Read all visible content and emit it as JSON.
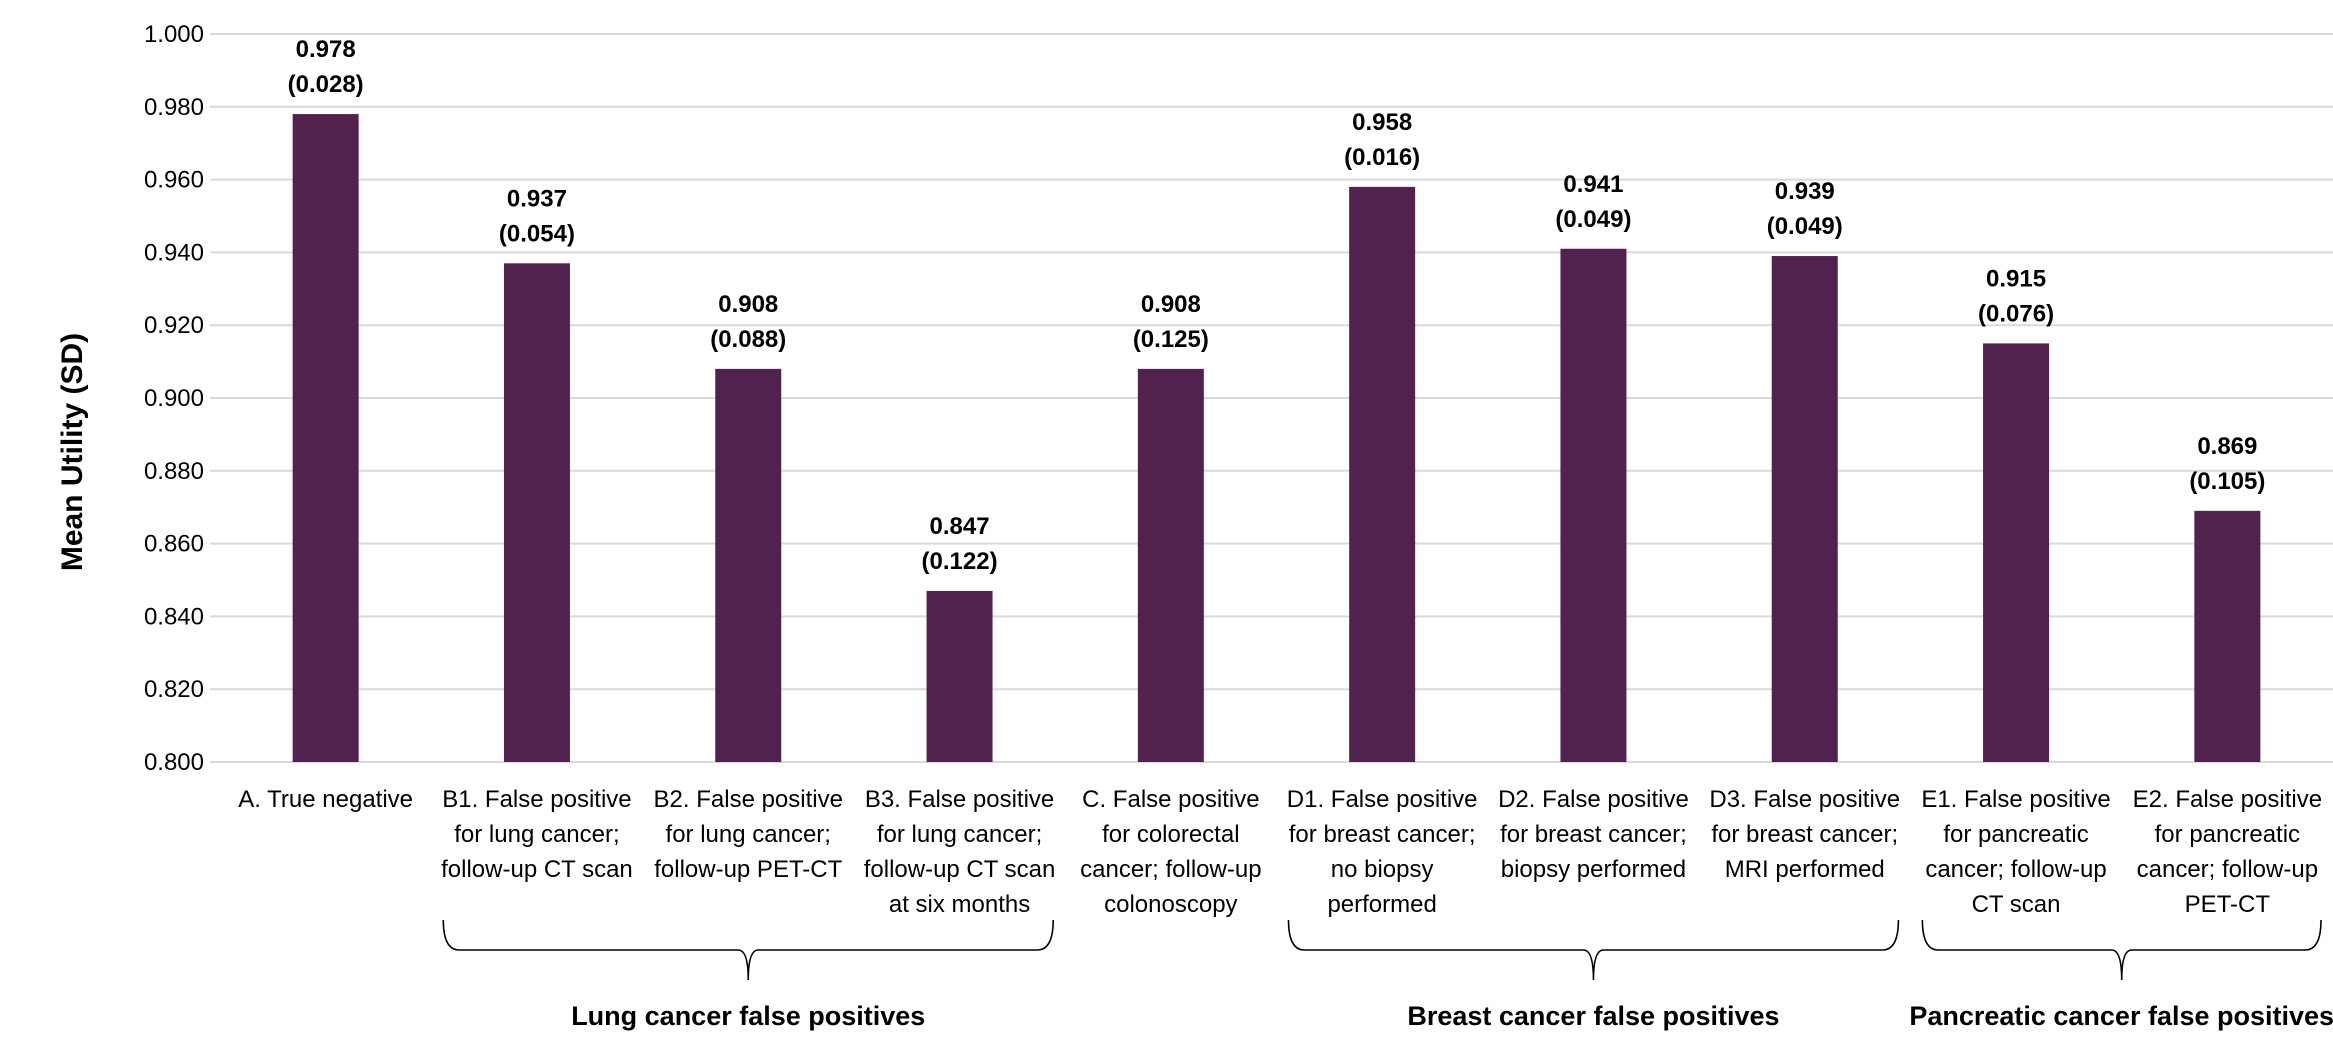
{
  "chart_data": {
    "type": "bar",
    "title": "",
    "xlabel": "",
    "ylabel": "Mean Utility (SD)",
    "ylim": [
      0.8,
      1.0
    ],
    "y_ticks": [
      "0.800",
      "0.820",
      "0.840",
      "0.860",
      "0.880",
      "0.900",
      "0.920",
      "0.940",
      "0.960",
      "0.980",
      "1.000"
    ],
    "grid": true,
    "legend": "none",
    "bar_color": "#52224f",
    "categories": [
      [
        "A. True negative"
      ],
      [
        "B1. False positive",
        "for lung cancer;",
        "follow-up CT scan"
      ],
      [
        "B2. False positive",
        "for lung cancer;",
        "follow-up PET-CT"
      ],
      [
        "B3. False positive",
        "for lung cancer;",
        "follow-up CT scan",
        "at six months"
      ],
      [
        "C. False positive",
        "for colorectal",
        "cancer; follow-up",
        "colonoscopy"
      ],
      [
        "D1. False positive",
        "for breast cancer;",
        "no biopsy",
        "performed"
      ],
      [
        "D2. False positive",
        "for breast cancer;",
        "biopsy performed"
      ],
      [
        "D3. False positive",
        "for breast cancer;",
        "MRI performed"
      ],
      [
        "E1. False positive",
        "for pancreatic",
        "cancer; follow-up",
        "CT scan"
      ],
      [
        "E2. False positive",
        "for pancreatic",
        "cancer; follow-up",
        "PET-CT"
      ]
    ],
    "values": [
      0.978,
      0.937,
      0.908,
      0.847,
      0.908,
      0.958,
      0.941,
      0.939,
      0.915,
      0.869
    ],
    "sd": [
      0.028,
      0.054,
      0.088,
      0.122,
      0.125,
      0.016,
      0.049,
      0.049,
      0.076,
      0.105
    ],
    "value_labels": [
      "0.978",
      "0.937",
      "0.908",
      "0.847",
      "0.908",
      "0.958",
      "0.941",
      "0.939",
      "0.915",
      "0.869"
    ],
    "sd_labels": [
      "(0.028)",
      "(0.054)",
      "(0.088)",
      "(0.122)",
      "(0.125)",
      "(0.016)",
      "(0.049)",
      "(0.049)",
      "(0.076)",
      "(0.105)"
    ],
    "groups": [
      {
        "label": "Lung cancer false positives",
        "from": 1,
        "to": 3
      },
      {
        "label": "Breast cancer false positives",
        "from": 5,
        "to": 7
      },
      {
        "label": "Pancreatic cancer false positives",
        "from": 8,
        "to": 9
      }
    ]
  }
}
